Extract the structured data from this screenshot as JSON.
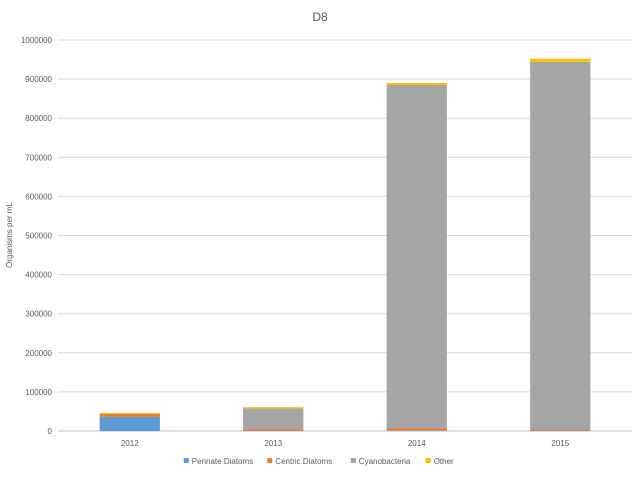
{
  "chart_data": {
    "type": "bar",
    "stacked": true,
    "title": "D8",
    "xlabel": "",
    "ylabel": "Organisms per mL",
    "ylim": [
      0,
      1000000
    ],
    "yticks": [
      0,
      100000,
      200000,
      300000,
      400000,
      500000,
      600000,
      700000,
      800000,
      900000,
      1000000
    ],
    "categories": [
      "2012",
      "2013",
      "2014",
      "2015"
    ],
    "series": [
      {
        "name": "Pennate Diatoms",
        "color": "#5b9bd5",
        "values": [
          36000,
          1000,
          2000,
          1000
        ]
      },
      {
        "name": "Centric Diatoms",
        "color": "#ed7d31",
        "values": [
          8000,
          4000,
          6000,
          3000
        ]
      },
      {
        "name": "Cyanobacteria",
        "color": "#a5a5a5",
        "values": [
          0,
          53000,
          877000,
          940000
        ]
      },
      {
        "name": "Other",
        "color": "#ffc000",
        "values": [
          2000,
          3000,
          5000,
          8000
        ]
      }
    ],
    "grid": true,
    "legend_position": "bottom"
  }
}
